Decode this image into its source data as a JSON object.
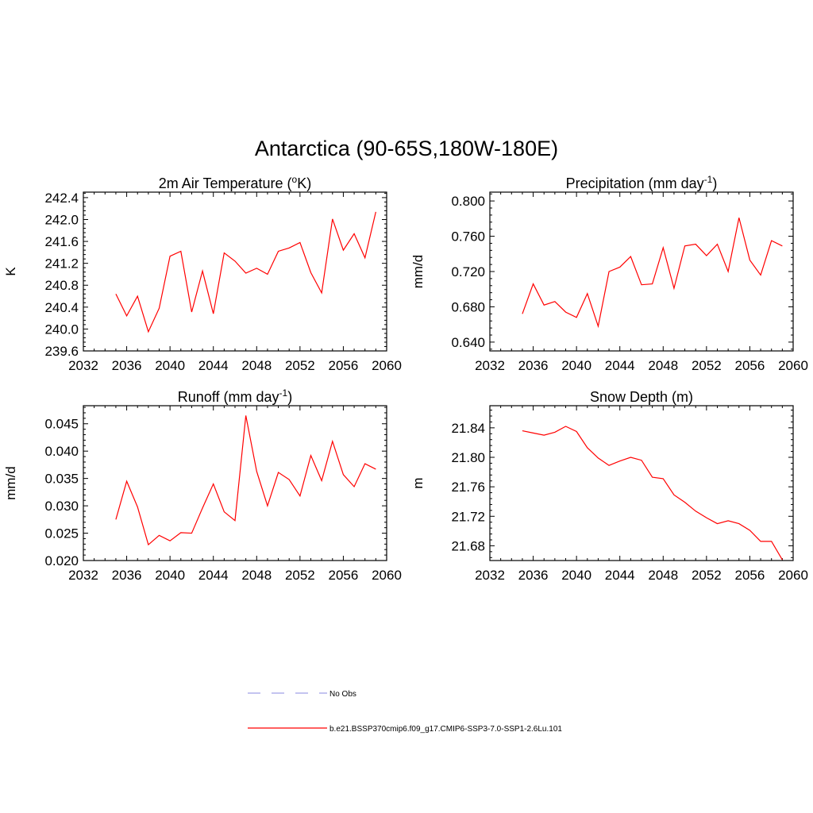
{
  "title": "Antarctica (90-65S,180W-180E)",
  "colors": {
    "series": "#ff0000",
    "obs": "#a0a0e6",
    "axis": "#000000"
  },
  "legend": {
    "entries": [
      {
        "label": "No Obs",
        "style": "dashed",
        "color": "#a0a0e6"
      },
      {
        "label": "b.e21.BSSP370cmip6.f09_g17.CMIP6-SSP3-7.0-SSP1-2.6Lu.101",
        "style": "solid",
        "color": "#ff0000"
      }
    ]
  },
  "chart_data": [
    {
      "type": "line",
      "title": "2m Air Temperature (°K)",
      "title_main": "2m Air Temperature (",
      "title_sup": "o",
      "title_end": "K)",
      "ylabel": "K",
      "xlim": [
        2032,
        2060
      ],
      "ylim": [
        239.6,
        242.5
      ],
      "xticks": [
        "2032",
        "2036",
        "2040",
        "2044",
        "2048",
        "2052",
        "2056",
        "2060"
      ],
      "yticks": [
        "239.6",
        "240.0",
        "240.4",
        "240.8",
        "241.2",
        "241.6",
        "242.0",
        "242.4"
      ],
      "series": [
        {
          "x": [
            2035,
            2036,
            2037,
            2038,
            2039,
            2040,
            2041,
            2042,
            2043,
            2044,
            2045,
            2046,
            2047,
            2048,
            2049,
            2050,
            2051,
            2052,
            2053,
            2054,
            2055,
            2056,
            2057,
            2058,
            2059
          ],
          "values": [
            240.64,
            240.24,
            240.6,
            239.95,
            240.38,
            241.33,
            241.42,
            240.31,
            241.06,
            240.28,
            241.39,
            241.24,
            241.02,
            241.11,
            241.0,
            241.42,
            241.48,
            241.58,
            241.03,
            240.66,
            242.01,
            241.44,
            241.74,
            241.3,
            242.14
          ]
        }
      ]
    },
    {
      "type": "line",
      "title": "Precipitation (mm day-1)",
      "title_main": "Precipitation (mm day",
      "title_sup": "-1",
      "title_end": ")",
      "ylabel": "mm/d",
      "xlim": [
        2032,
        2060
      ],
      "ylim": [
        0.63,
        0.81
      ],
      "xticks": [
        "2032",
        "2036",
        "2040",
        "2044",
        "2048",
        "2052",
        "2056",
        "2060"
      ],
      "yticks": [
        "0.640",
        "0.680",
        "0.720",
        "0.760",
        "0.800"
      ],
      "series": [
        {
          "x": [
            2035,
            2036,
            2037,
            2038,
            2039,
            2040,
            2041,
            2042,
            2043,
            2044,
            2045,
            2046,
            2047,
            2048,
            2049,
            2050,
            2051,
            2052,
            2053,
            2054,
            2055,
            2056,
            2057,
            2058,
            2059
          ],
          "values": [
            0.672,
            0.706,
            0.682,
            0.686,
            0.674,
            0.668,
            0.695,
            0.658,
            0.72,
            0.725,
            0.737,
            0.705,
            0.706,
            0.747,
            0.701,
            0.749,
            0.751,
            0.738,
            0.751,
            0.72,
            0.781,
            0.733,
            0.716,
            0.755,
            0.749
          ]
        }
      ]
    },
    {
      "type": "line",
      "title": "Runoff (mm day-1)",
      "title_main": "Runoff (mm day",
      "title_sup": "-1",
      "title_end": ")",
      "ylabel": "mm/d",
      "xlim": [
        2032,
        2060
      ],
      "ylim": [
        0.02,
        0.0483
      ],
      "xticks": [
        "2032",
        "2036",
        "2040",
        "2044",
        "2048",
        "2052",
        "2056",
        "2060"
      ],
      "yticks": [
        "0.020",
        "0.025",
        "0.030",
        "0.035",
        "0.040",
        "0.045"
      ],
      "series": [
        {
          "x": [
            2035,
            2036,
            2037,
            2038,
            2039,
            2040,
            2041,
            2042,
            2043,
            2044,
            2045,
            2046,
            2047,
            2048,
            2049,
            2050,
            2051,
            2052,
            2053,
            2054,
            2055,
            2056,
            2057,
            2058,
            2059
          ],
          "values": [
            0.0275,
            0.0345,
            0.0298,
            0.0229,
            0.0246,
            0.0236,
            0.0251,
            0.025,
            0.0296,
            0.034,
            0.0289,
            0.0273,
            0.0465,
            0.0363,
            0.03,
            0.0361,
            0.0348,
            0.0318,
            0.0392,
            0.0346,
            0.0418,
            0.0357,
            0.0335,
            0.0377,
            0.0367
          ]
        }
      ]
    },
    {
      "type": "line",
      "title": "Snow Depth (m)",
      "title_main": "Snow Depth (m)",
      "title_sup": "",
      "title_end": "",
      "ylabel": "m",
      "xlim": [
        2032,
        2060
      ],
      "ylim": [
        21.66,
        21.87
      ],
      "xticks": [
        "2032",
        "2036",
        "2040",
        "2044",
        "2048",
        "2052",
        "2056",
        "2060"
      ],
      "yticks": [
        "21.68",
        "21.72",
        "21.76",
        "21.80",
        "21.84"
      ],
      "series": [
        {
          "x": [
            2035,
            2036,
            2037,
            2038,
            2039,
            2040,
            2041,
            2042,
            2043,
            2044,
            2045,
            2046,
            2047,
            2048,
            2049,
            2050,
            2051,
            2052,
            2053,
            2054,
            2055,
            2056,
            2057,
            2058,
            2059
          ],
          "values": [
            21.836,
            21.833,
            21.83,
            21.834,
            21.842,
            21.835,
            21.813,
            21.799,
            21.789,
            21.795,
            21.8,
            21.796,
            21.773,
            21.771,
            21.749,
            21.739,
            21.727,
            21.718,
            21.71,
            21.714,
            21.71,
            21.701,
            21.686,
            21.686,
            21.661
          ]
        }
      ]
    }
  ]
}
